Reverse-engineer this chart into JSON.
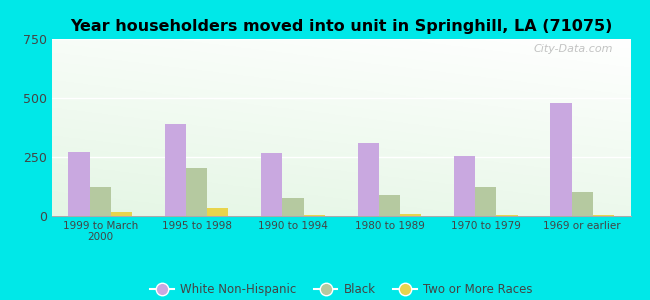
{
  "title": "Year householders moved into unit in Springhill, LA (71075)",
  "categories": [
    "1999 to March\n2000",
    "1995 to 1998",
    "1990 to 1994",
    "1980 to 1989",
    "1970 to 1979",
    "1969 or earlier"
  ],
  "white_non_hispanic": [
    270,
    390,
    265,
    310,
    255,
    480
  ],
  "black": [
    125,
    205,
    75,
    90,
    125,
    100
  ],
  "two_or_more_races": [
    15,
    35,
    5,
    10,
    5,
    5
  ],
  "bar_colors": {
    "white": "#c9a8e0",
    "black": "#b5c9a0",
    "two_or_more": "#e8d44d"
  },
  "ylim": [
    0,
    750
  ],
  "yticks": [
    0,
    250,
    500,
    750
  ],
  "background_color": "#00e8e8",
  "watermark": "City-Data.com",
  "legend_labels": [
    "White Non-Hispanic",
    "Black",
    "Two or More Races"
  ]
}
